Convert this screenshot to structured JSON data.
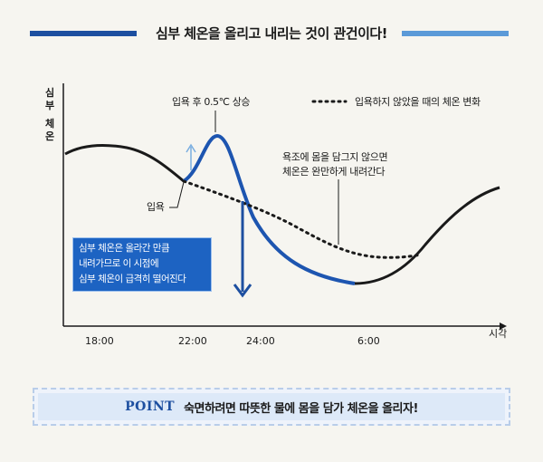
{
  "header": {
    "title": "심부 체온을 올리고 내리는 것이 관건이다!",
    "bar_left_color": "#1d4fa0",
    "bar_right_color": "#5b9ad8"
  },
  "chart_data": {
    "type": "line",
    "ylabel": "심부 체온",
    "xlabel": "시각",
    "x_ticks": [
      "18:00",
      "22:00",
      "24:00",
      "6:00"
    ],
    "series": [
      {
        "name": "입욕 후 0.5℃ 상승",
        "style": "solid",
        "points": [
          {
            "t": "16:30",
            "v": 0.4
          },
          {
            "t": "18:00",
            "v": 0.55
          },
          {
            "t": "20:00",
            "v": 0.42
          },
          {
            "t": "22:00",
            "v": 0.45
          },
          {
            "t": "23:00",
            "v": 1.0
          },
          {
            "t": "24:00",
            "v": 0.0
          },
          {
            "t": "04:00",
            "v": -0.75
          },
          {
            "t": "06:00",
            "v": -0.8
          },
          {
            "t": "08:00",
            "v": -0.55
          },
          {
            "t": "10:00",
            "v": 0.2
          }
        ]
      },
      {
        "name": "입욕하지 않았을 때의 체온 변화",
        "style": "dotted",
        "points": [
          {
            "t": "22:00",
            "v": 0.45
          },
          {
            "t": "24:00",
            "v": 0.05
          },
          {
            "t": "04:00",
            "v": -0.55
          },
          {
            "t": "06:00",
            "v": -0.6
          },
          {
            "t": "07:00",
            "v": -0.55
          }
        ]
      }
    ],
    "annotations": {
      "peak_label": "입욕 후 0.5℃ 상승",
      "legend_dotted": "입욕하지 않았을 때의 체온 변화",
      "bath_label": "입욕",
      "slow_note_line1": "욕조에 몸을 담그지 않으면",
      "slow_note_line2": "체온은 완만하게 내려간다"
    },
    "colors": {
      "line": "#1a1a1a",
      "highlight": "#1d55b0",
      "arrow_up": "#7aaee0"
    },
    "grid": false
  },
  "callout": {
    "line1": "심부 체온은 올라간 만큼",
    "line2": "내려가므로 이 시점에",
    "line3": "심부 체온이 급격히 떨어진다",
    "color": "#1d63c2"
  },
  "point": {
    "word": "POINT",
    "text": "숙면하려면 따뜻한 물에 몸을 담가 체온을 올리자!"
  }
}
